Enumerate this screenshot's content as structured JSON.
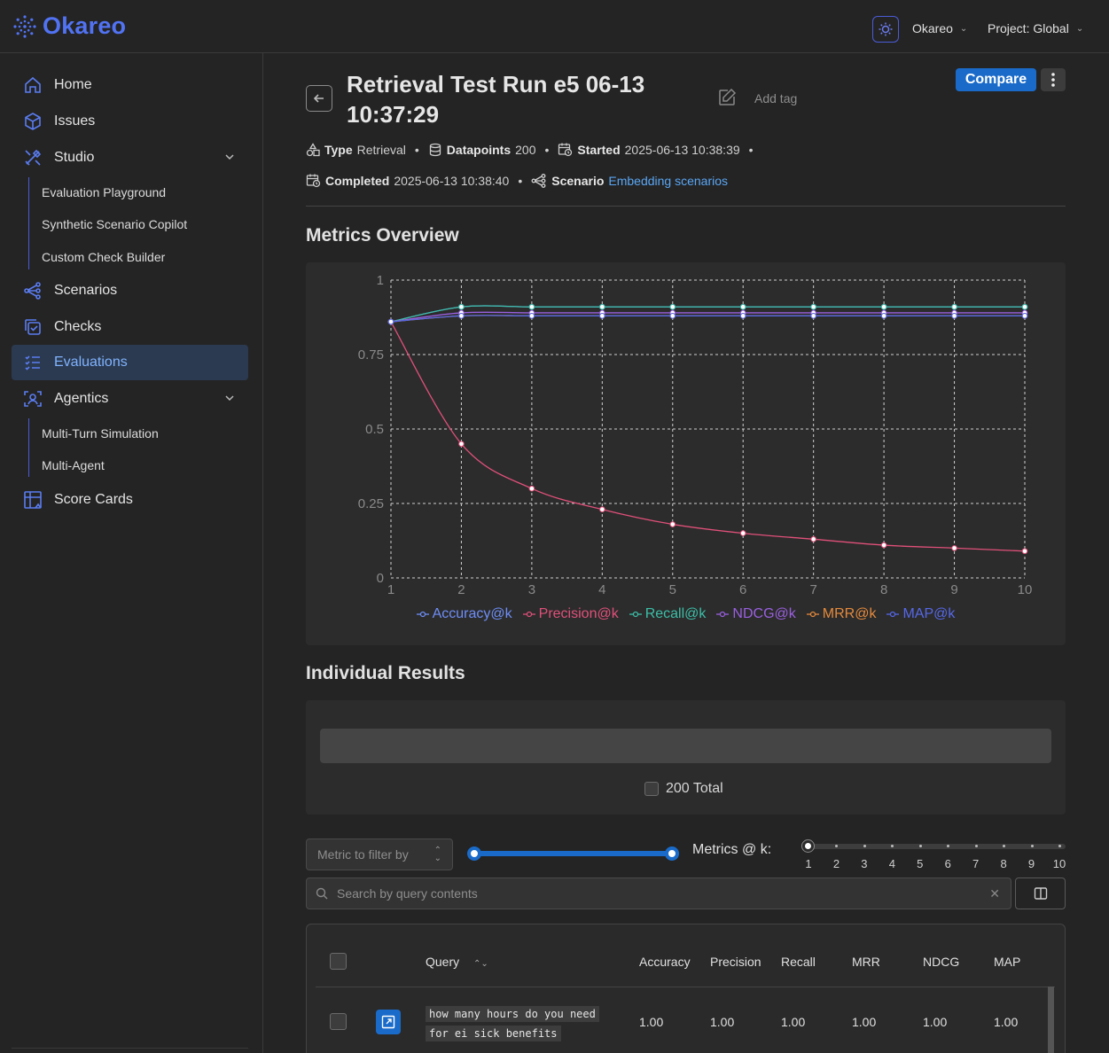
{
  "app": {
    "name": "Okareo"
  },
  "header": {
    "org": "Okareo",
    "project": "Project: Global"
  },
  "sidebar": {
    "items": [
      {
        "label": "Home"
      },
      {
        "label": "Issues"
      },
      {
        "label": "Studio"
      },
      {
        "label": "Scenarios"
      },
      {
        "label": "Checks"
      },
      {
        "label": "Evaluations"
      },
      {
        "label": "Agentics"
      },
      {
        "label": "Score Cards"
      }
    ],
    "studio_sub": [
      "Evaluation Playground",
      "Synthetic Scenario Copilot",
      "Custom Check Builder"
    ],
    "agentics_sub": [
      "Multi-Turn Simulation",
      "Multi-Agent"
    ],
    "active": "Evaluations"
  },
  "run": {
    "title_line1": "Retrieval Test Run e5 06-13",
    "title_line2": "10:37:29",
    "add_tag": "Add tag",
    "compare": "Compare",
    "type_label": "Type",
    "type_value": "Retrieval",
    "datapoints_label": "Datapoints",
    "datapoints_value": "200",
    "started_label": "Started",
    "started_value": "2025-06-13 10:38:39",
    "completed_label": "Completed",
    "completed_value": "2025-06-13 10:38:40",
    "scenario_label": "Scenario",
    "scenario_value": "Embedding scenarios"
  },
  "sections": {
    "metrics": "Metrics Overview",
    "results": "Individual Results"
  },
  "chart_data": {
    "type": "line",
    "x": [
      1,
      2,
      3,
      4,
      5,
      6,
      7,
      8,
      9,
      10
    ],
    "xlim": [
      1,
      10
    ],
    "ylim": [
      0,
      1
    ],
    "yticks": [
      "0",
      "0.25",
      "0.5",
      "0.75",
      "1"
    ],
    "grid": true,
    "legend_placement": "bottom",
    "series": [
      {
        "name": "Accuracy@k",
        "color": "#6e8ef7",
        "values": [
          0.86,
          0.91,
          0.91,
          0.91,
          0.91,
          0.91,
          0.91,
          0.91,
          0.91,
          0.91
        ]
      },
      {
        "name": "Precision@k",
        "color": "#e0507a",
        "values": [
          0.86,
          0.45,
          0.3,
          0.23,
          0.18,
          0.15,
          0.13,
          0.11,
          0.1,
          0.09
        ]
      },
      {
        "name": "Recall@k",
        "color": "#3cbfa8",
        "values": [
          0.86,
          0.91,
          0.91,
          0.91,
          0.91,
          0.91,
          0.91,
          0.91,
          0.91,
          0.91
        ]
      },
      {
        "name": "NDCG@k",
        "color": "#9a60e0",
        "values": [
          0.86,
          0.89,
          0.89,
          0.89,
          0.89,
          0.89,
          0.89,
          0.89,
          0.89,
          0.89
        ]
      },
      {
        "name": "MRR@k",
        "color": "#e58a3c",
        "values": [
          0.86,
          0.88,
          0.88,
          0.88,
          0.88,
          0.88,
          0.88,
          0.88,
          0.88,
          0.88
        ]
      },
      {
        "name": "MAP@k",
        "color": "#5668e8",
        "values": [
          0.86,
          0.88,
          0.88,
          0.88,
          0.88,
          0.88,
          0.88,
          0.88,
          0.88,
          0.88
        ]
      }
    ]
  },
  "results": {
    "total": "200 Total"
  },
  "filters": {
    "metric_placeholder": "Metric to filter by",
    "k_label": "Metrics @ k:",
    "k_ticks": [
      "1",
      "2",
      "3",
      "4",
      "5",
      "6",
      "7",
      "8",
      "9",
      "10"
    ],
    "search_placeholder": "Search by query contents"
  },
  "table": {
    "headers": [
      "Query",
      "Accuracy",
      "Precision",
      "Recall",
      "MRR",
      "NDCG",
      "MAP"
    ],
    "rows": [
      {
        "query_line1": "how many hours do you need",
        "query_line2": "for ei sick benefits",
        "accuracy": "1.00",
        "precision": "1.00",
        "recall": "1.00",
        "mrr": "1.00",
        "ndcg": "1.00",
        "map": "1.00"
      }
    ]
  }
}
